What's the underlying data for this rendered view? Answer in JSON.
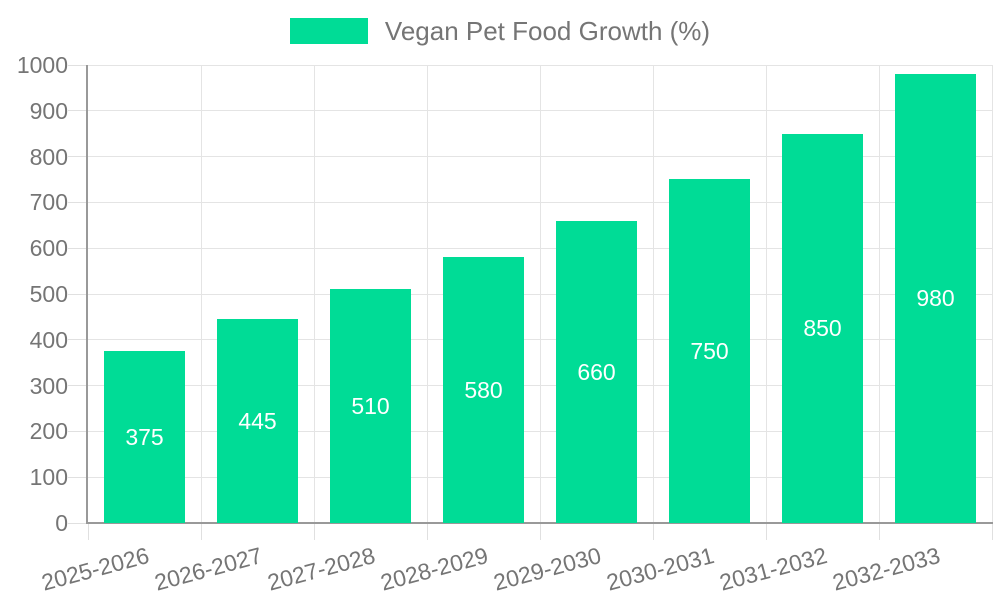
{
  "chart_data": {
    "type": "bar",
    "title": "Vegan Pet Food Growth (%)",
    "legend": {
      "label": "Vegan Pet Food Growth (%)",
      "position": "top-center"
    },
    "categories": [
      "2025-2026",
      "2026-2027",
      "2027-2028",
      "2028-2029",
      "2029-2030",
      "2030-2031",
      "2031-2032",
      "2032-2033"
    ],
    "values": [
      375,
      445,
      510,
      580,
      660,
      750,
      850,
      980
    ],
    "xlabel": "",
    "ylabel": "",
    "ylim": [
      0,
      1000
    ],
    "ytick_step": 100,
    "grid": true,
    "x_tick_label_rotation_deg": 15,
    "value_labels": {
      "position": "inside-center",
      "color": "#ffffff"
    },
    "colors": {
      "bar": "#00DC96",
      "gridline": "#E4E4E4",
      "tick": "#E0E0E0",
      "axis_line": "#999999",
      "axis_text": "#757575",
      "background": "#FFFFFF"
    }
  }
}
